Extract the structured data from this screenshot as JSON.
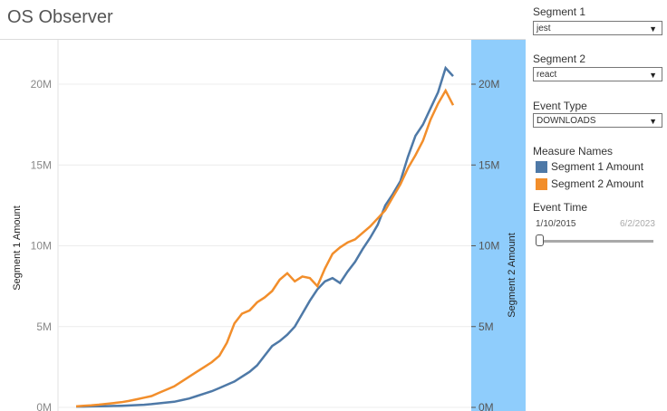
{
  "title": "OS Observer",
  "controls": {
    "segment1": {
      "label": "Segment 1",
      "value": "jest"
    },
    "segment2": {
      "label": "Segment 2",
      "value": "react"
    },
    "event_type": {
      "label": "Event Type",
      "value": "DOWNLOADS"
    }
  },
  "legend": {
    "title": "Measure Names",
    "items": [
      {
        "label": "Segment 1 Amount",
        "color": "#4e79a7"
      },
      {
        "label": "Segment 2 Amount",
        "color": "#f28e2b"
      }
    ]
  },
  "event_time": {
    "label": "Event Time",
    "start": "1/10/2015",
    "end": "6/2/2023",
    "handle_fraction": 0.0
  },
  "colors": {
    "axis_band": "#8fcdfc",
    "segment1": "#4e79a7",
    "segment2": "#f28e2b"
  },
  "chart_data": {
    "type": "line",
    "ylabel_left": "Segment 1 Amount",
    "ylabel_right": "Segment 2 Amount",
    "yticks": [
      "0M",
      "5M",
      "10M",
      "15M",
      "20M"
    ],
    "ylim": [
      0,
      22500000
    ],
    "x": [
      0,
      2,
      4,
      6,
      8,
      10,
      12,
      14,
      16,
      18,
      20,
      22,
      24,
      26,
      28,
      30,
      32,
      34,
      36,
      38,
      40,
      42,
      44,
      46,
      48,
      50,
      52,
      54,
      56,
      58,
      60,
      62,
      64,
      66,
      68,
      70,
      72,
      74,
      76,
      78,
      80,
      82,
      84,
      86,
      88,
      90,
      92,
      94,
      96,
      98,
      100
    ],
    "series": [
      {
        "name": "Segment 1 Amount",
        "values": [
          0.05,
          0.05,
          0.06,
          0.07,
          0.08,
          0.09,
          0.1,
          0.12,
          0.14,
          0.16,
          0.2,
          0.25,
          0.3,
          0.35,
          0.45,
          0.55,
          0.7,
          0.85,
          1.0,
          1.2,
          1.4,
          1.6,
          1.9,
          2.2,
          2.6,
          3.2,
          3.8,
          4.1,
          4.5,
          5.0,
          5.8,
          6.6,
          7.3,
          7.8,
          8.0,
          7.7,
          8.4,
          9.0,
          9.8,
          10.5,
          11.3,
          12.5,
          13.2,
          14.0,
          15.5,
          16.8,
          17.5,
          18.5,
          19.5,
          21.0,
          20.5
        ]
      },
      {
        "name": "Segment 2 Amount",
        "values": [
          0.06,
          0.1,
          0.13,
          0.17,
          0.22,
          0.27,
          0.32,
          0.4,
          0.5,
          0.6,
          0.7,
          0.9,
          1.1,
          1.3,
          1.6,
          1.9,
          2.2,
          2.5,
          2.8,
          3.2,
          4.0,
          5.2,
          5.8,
          6.0,
          6.5,
          6.8,
          7.2,
          7.9,
          8.3,
          7.8,
          8.1,
          8.0,
          7.5,
          8.6,
          9.5,
          9.9,
          10.2,
          10.4,
          10.8,
          11.2,
          11.7,
          12.2,
          13.0,
          13.8,
          14.8,
          15.6,
          16.5,
          17.8,
          18.8,
          19.6,
          18.7
        ]
      }
    ]
  }
}
